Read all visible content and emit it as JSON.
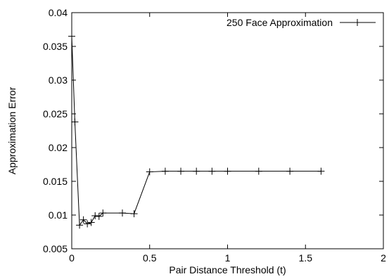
{
  "chart_data": {
    "type": "line",
    "title": "",
    "xlabel": "Pair Distance Threshold (t)",
    "ylabel": "Approximation Error",
    "xlim": [
      0,
      2
    ],
    "ylim": [
      0.005,
      0.04
    ],
    "xticks": [
      0,
      0.5,
      1,
      1.5,
      2
    ],
    "xtick_labels": [
      "0",
      "0.5",
      "1",
      "1.5",
      "2"
    ],
    "yticks": [
      0.005,
      0.01,
      0.015,
      0.02,
      0.025,
      0.03,
      0.035,
      0.04
    ],
    "ytick_labels": [
      "0.005",
      "0.01",
      "0.015",
      "0.02",
      "0.025",
      "0.03",
      "0.035",
      "0.04"
    ],
    "grid": false,
    "legend_position": "top-right",
    "colors": {
      "line": "#000000",
      "axis": "#000000"
    },
    "series": [
      {
        "name": "250 Face Approximation",
        "marker": "plus",
        "x": [
          0,
          0.02,
          0.05,
          0.075,
          0.1,
          0.125,
          0.15,
          0.175,
          0.2,
          0.325,
          0.4,
          0.5,
          0.6,
          0.7,
          0.8,
          0.9,
          1.0,
          1.2,
          1.4,
          1.6
        ],
        "y": [
          0.0365,
          0.0238,
          0.0085,
          0.0093,
          0.0087,
          0.0089,
          0.0099,
          0.0098,
          0.0103,
          0.0103,
          0.0102,
          0.0164,
          0.0165,
          0.0165,
          0.0165,
          0.0165,
          0.0165,
          0.0165,
          0.0165,
          0.0165
        ]
      }
    ]
  }
}
